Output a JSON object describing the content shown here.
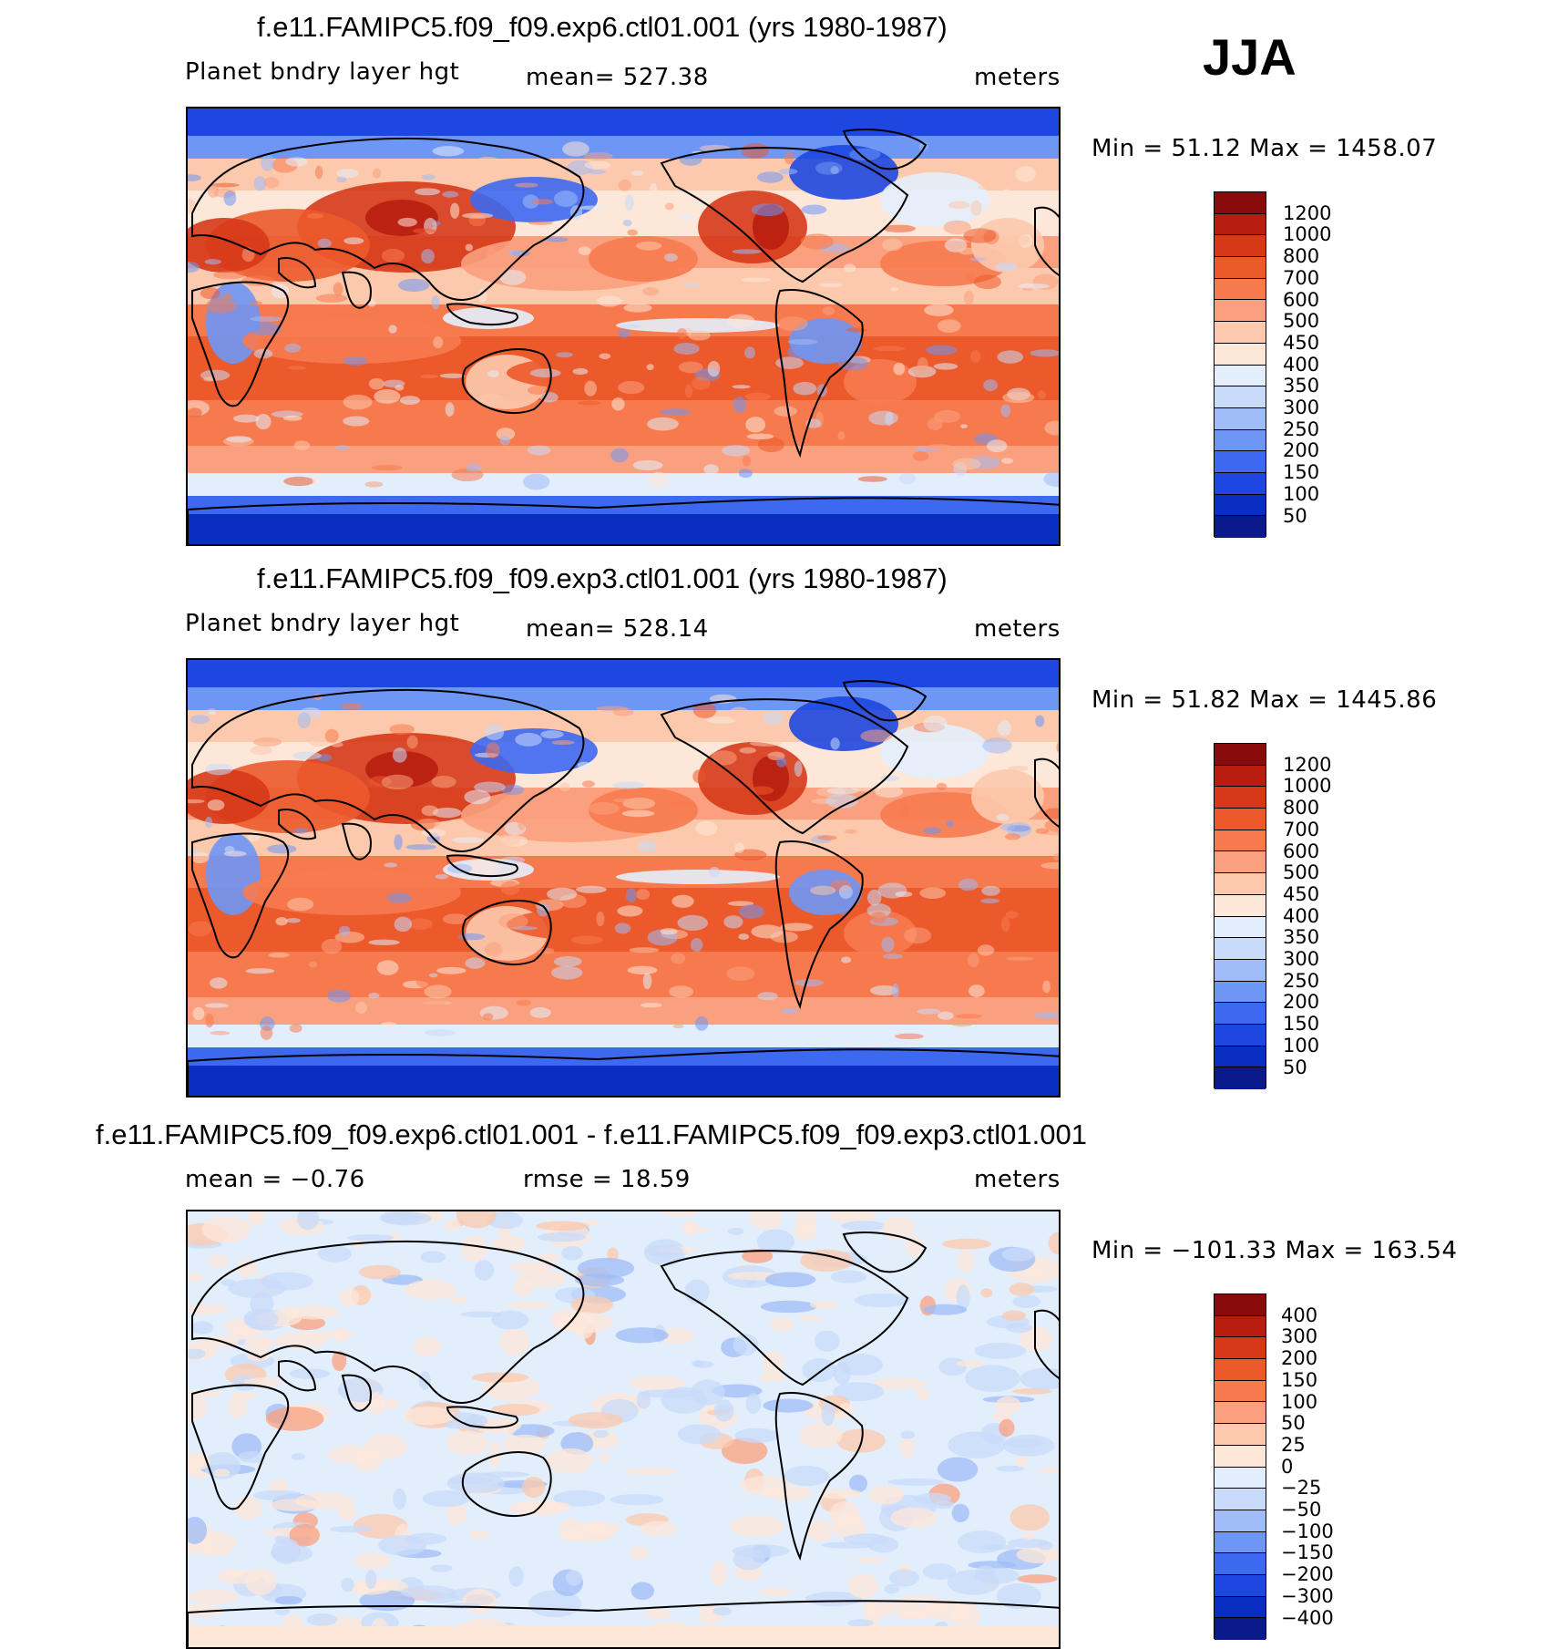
{
  "season": "JJA",
  "colors": {
    "abs": [
      "#0a1a8c",
      "#0a2ec2",
      "#1d47e0",
      "#3d68f0",
      "#6e96f5",
      "#9fbcf7",
      "#c8dbfa",
      "#e3eefc",
      "#fde7d9",
      "#fcc9ad",
      "#faa07e",
      "#f77a4f",
      "#ec5a2c",
      "#d63818",
      "#b81e10",
      "#8a0b0b"
    ],
    "diff": [
      "#0a1a8c",
      "#0a2ec2",
      "#1d47e0",
      "#3d68f0",
      "#6e96f5",
      "#9fbcf7",
      "#c8dbfa",
      "#e3eefc",
      "#fde7d9",
      "#fcc9ad",
      "#faa07e",
      "#f77a4f",
      "#ec5a2c",
      "#d63818",
      "#b81e10",
      "#8a0b0b"
    ]
  },
  "panels": [
    {
      "title": "f.e11.FAMIPC5.f09_f09.exp6.ctl01.001 (yrs 1980-1987)",
      "left_label": "Planet  bndry  layer  hgt",
      "center_label": "mean=  527.38",
      "right_label": "meters",
      "minmax": "Min  =    51.12  Max  =  1458.07",
      "levels": [
        "1200",
        "1000",
        "800",
        "700",
        "600",
        "500",
        "450",
        "400",
        "350",
        "300",
        "250",
        "200",
        "150",
        "100",
        "50"
      ]
    },
    {
      "title": "f.e11.FAMIPC5.f09_f09.exp3.ctl01.001 (yrs 1980-1987)",
      "left_label": "Planet  bndry  layer  hgt",
      "center_label": "mean=  528.14",
      "right_label": "meters",
      "minmax": "Min  =    51.82  Max  =  1445.86",
      "levels": [
        "1200",
        "1000",
        "800",
        "700",
        "600",
        "500",
        "450",
        "400",
        "350",
        "300",
        "250",
        "200",
        "150",
        "100",
        "50"
      ]
    },
    {
      "title": "f.e11.FAMIPC5.f09_f09.exp6.ctl01.001 - f.e11.FAMIPC5.f09_f09.exp3.ctl01.001",
      "left_label": "mean  =    −0.76",
      "center_label": "rmse  =    18.59",
      "right_label": "meters",
      "minmax": "Min  =  −101.33  Max  =  163.54",
      "levels": [
        "400",
        "300",
        "200",
        "150",
        "100",
        "50",
        "25",
        "0",
        "−25",
        "−50",
        "−100",
        "−150",
        "−200",
        "−300",
        "−400"
      ]
    }
  ],
  "chart_data": [
    {
      "type": "heatmap",
      "title": "f.e11.FAMIPC5.f09_f09.exp6.ctl01.001 (yrs 1980-1987)",
      "variable": "Planet  bndry  layer  hgt",
      "units": "meters",
      "mean": 527.38,
      "min": 51.12,
      "max": 1458.07,
      "contour_levels": [
        50,
        100,
        150,
        200,
        250,
        300,
        350,
        400,
        450,
        500,
        600,
        700,
        800,
        1000,
        1200
      ]
    },
    {
      "type": "heatmap",
      "title": "f.e11.FAMIPC5.f09_f09.exp3.ctl01.001 (yrs 1980-1987)",
      "variable": "Planet  bndry  layer  hgt",
      "units": "meters",
      "mean": 528.14,
      "min": 51.82,
      "max": 1445.86,
      "contour_levels": [
        50,
        100,
        150,
        200,
        250,
        300,
        350,
        400,
        450,
        500,
        600,
        700,
        800,
        1000,
        1200
      ]
    },
    {
      "type": "heatmap",
      "title": "f.e11.FAMIPC5.f09_f09.exp6.ctl01.001 - f.e11.FAMIPC5.f09_f09.exp3.ctl01.001",
      "units": "meters",
      "mean": -0.76,
      "rmse": 18.59,
      "min": -101.33,
      "max": 163.54,
      "contour_levels": [
        -400,
        -300,
        -200,
        -150,
        -100,
        -50,
        -25,
        0,
        25,
        50,
        100,
        150,
        200,
        300,
        400
      ]
    }
  ]
}
